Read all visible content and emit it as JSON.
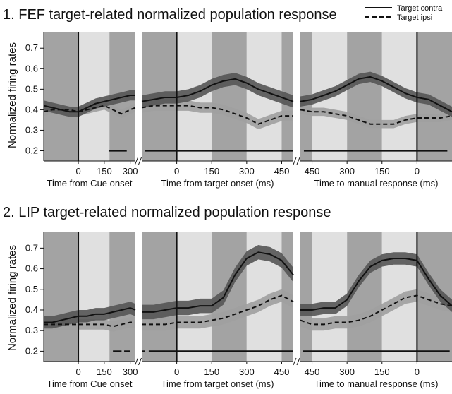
{
  "colors": {
    "shade_dark": "#a3a3a3",
    "shade_light": "#e0e0e0",
    "contra_line": "#111111",
    "contra_band": "#555555",
    "ipsi_line": "#111111",
    "ipsi_band": "#a0a0a0"
  },
  "legend": {
    "contra": "Target contra",
    "ipsi": "Target ipsi"
  },
  "chart_data": [
    {
      "type": "line",
      "title": "1. FEF target-related normalized population response",
      "ylabel": "Normalized firing rates",
      "ylim": [
        0.15,
        0.78
      ],
      "yticks": [
        0.2,
        0.3,
        0.4,
        0.5,
        0.6,
        0.7
      ],
      "ytick_labels": [
        "0.2",
        "0.3",
        "0.4",
        "0.5",
        "0.6",
        "0.7"
      ],
      "panels": [
        {
          "xlabel": "Time from Cue onset",
          "xlim": [
            -200,
            330
          ],
          "xticks": [
            0,
            150,
            300
          ],
          "xtick_labels": [
            "0",
            "150",
            "300"
          ],
          "vline": 0,
          "shading": [
            [
              -200,
              0,
              "dark"
            ],
            [
              0,
              180,
              "light"
            ],
            [
              180,
              330,
              "dark"
            ]
          ],
          "sig_bar": [
            [
              175,
              280
            ]
          ],
          "series": [
            {
              "name": "Target contra",
              "x": [
                -200,
                -150,
                -100,
                -50,
                0,
                50,
                100,
                150,
                200,
                250,
                300,
                330
              ],
              "y": [
                0.42,
                0.41,
                0.4,
                0.39,
                0.39,
                0.41,
                0.43,
                0.44,
                0.45,
                0.46,
                0.47,
                0.47
              ],
              "band": 0.025
            },
            {
              "name": "Target ipsi",
              "x": [
                -200,
                -150,
                -100,
                -50,
                0,
                50,
                100,
                150,
                200,
                250,
                300,
                330
              ],
              "y": [
                0.39,
                0.4,
                0.4,
                0.4,
                0.39,
                0.4,
                0.41,
                0.42,
                0.4,
                0.38,
                0.4,
                0.41
              ],
              "band": 0.02
            }
          ]
        },
        {
          "xlabel": "Time from target onset (ms)",
          "xlim": [
            -150,
            500
          ],
          "xticks": [
            0,
            150,
            300,
            450
          ],
          "xtick_labels": [
            "0",
            "150",
            "300",
            "450"
          ],
          "vline": 0,
          "shading": [
            [
              -150,
              0,
              "dark"
            ],
            [
              0,
              150,
              "light"
            ],
            [
              150,
              300,
              "dark"
            ],
            [
              300,
              450,
              "light"
            ],
            [
              450,
              500,
              "dark"
            ]
          ],
          "sig_bar": [
            [
              -135,
              500
            ]
          ],
          "series": [
            {
              "name": "Target contra",
              "x": [
                -150,
                -100,
                -50,
                0,
                50,
                100,
                150,
                200,
                250,
                300,
                350,
                400,
                450,
                500
              ],
              "y": [
                0.44,
                0.45,
                0.46,
                0.46,
                0.47,
                0.49,
                0.52,
                0.54,
                0.55,
                0.53,
                0.5,
                0.48,
                0.46,
                0.44
              ],
              "band": 0.03
            },
            {
              "name": "Target ipsi",
              "x": [
                -150,
                -100,
                -50,
                0,
                50,
                100,
                150,
                200,
                250,
                300,
                350,
                400,
                450,
                500
              ],
              "y": [
                0.41,
                0.42,
                0.42,
                0.42,
                0.42,
                0.41,
                0.41,
                0.4,
                0.38,
                0.36,
                0.33,
                0.35,
                0.37,
                0.37
              ],
              "band": 0.025
            }
          ]
        },
        {
          "xlabel": "Time to manual response (ms)",
          "xlim": [
            -500,
            150
          ],
          "xticks": [
            -450,
            -300,
            -150,
            0
          ],
          "xtick_labels": [
            "450",
            "300",
            "150",
            "0"
          ],
          "vline": 0,
          "shading": [
            [
              -500,
              -450,
              "dark"
            ],
            [
              -450,
              -300,
              "light"
            ],
            [
              -300,
              -150,
              "dark"
            ],
            [
              -150,
              0,
              "light"
            ],
            [
              0,
              150,
              "dark"
            ]
          ],
          "sig_bar": [
            [
              -485,
              130
            ]
          ],
          "series": [
            {
              "name": "Target contra",
              "x": [
                -500,
                -450,
                -400,
                -350,
                -300,
                -250,
                -200,
                -150,
                -100,
                -50,
                0,
                50,
                100,
                150
              ],
              "y": [
                0.44,
                0.45,
                0.47,
                0.49,
                0.52,
                0.55,
                0.56,
                0.54,
                0.51,
                0.48,
                0.46,
                0.45,
                0.42,
                0.39
              ],
              "band": 0.025
            },
            {
              "name": "Target ipsi",
              "x": [
                -500,
                -450,
                -400,
                -350,
                -300,
                -250,
                -200,
                -150,
                -100,
                -50,
                0,
                50,
                100,
                150
              ],
              "y": [
                0.4,
                0.39,
                0.39,
                0.38,
                0.37,
                0.35,
                0.33,
                0.33,
                0.33,
                0.35,
                0.36,
                0.36,
                0.36,
                0.37
              ],
              "band": 0.02
            }
          ]
        }
      ]
    },
    {
      "type": "line",
      "title": "2. LIP target-related normalized population response",
      "ylabel": "Normalized firing rates",
      "ylim": [
        0.15,
        0.78
      ],
      "yticks": [
        0.2,
        0.3,
        0.4,
        0.5,
        0.6,
        0.7
      ],
      "ytick_labels": [
        "0.2",
        "0.3",
        "0.4",
        "0.5",
        "0.6",
        "0.7"
      ],
      "panels": [
        {
          "xlabel": "Time from Cue onset",
          "xlim": [
            -200,
            330
          ],
          "xticks": [
            0,
            150,
            300
          ],
          "xtick_labels": [
            "0",
            "150",
            "300"
          ],
          "vline": 0,
          "shading": [
            [
              -200,
              0,
              "dark"
            ],
            [
              0,
              180,
              "light"
            ],
            [
              180,
              330,
              "dark"
            ]
          ],
          "sig_bar": [
            [
              200,
              250
            ],
            [
              265,
              300
            ]
          ],
          "series": [
            {
              "name": "Target contra",
              "x": [
                -200,
                -150,
                -100,
                -50,
                0,
                50,
                100,
                150,
                200,
                250,
                300,
                330
              ],
              "y": [
                0.34,
                0.34,
                0.35,
                0.36,
                0.37,
                0.37,
                0.38,
                0.38,
                0.39,
                0.4,
                0.41,
                0.4
              ],
              "band": 0.03
            },
            {
              "name": "Target ipsi",
              "x": [
                -200,
                -150,
                -100,
                -50,
                0,
                50,
                100,
                150,
                200,
                250,
                300,
                330
              ],
              "y": [
                0.33,
                0.33,
                0.33,
                0.33,
                0.33,
                0.33,
                0.33,
                0.33,
                0.32,
                0.33,
                0.34,
                0.34
              ],
              "band": 0.025
            }
          ]
        },
        {
          "xlabel": "Time from target onset (ms)",
          "xlim": [
            -150,
            500
          ],
          "xticks": [
            0,
            150,
            300,
            450
          ],
          "xtick_labels": [
            "0",
            "150",
            "300",
            "450"
          ],
          "vline": 0,
          "shading": [
            [
              -150,
              0,
              "dark"
            ],
            [
              0,
              150,
              "light"
            ],
            [
              150,
              300,
              "dark"
            ],
            [
              300,
              450,
              "light"
            ],
            [
              450,
              500,
              "dark"
            ]
          ],
          "sig_bar": [
            [
              -150,
              -135
            ],
            [
              -120,
              500
            ]
          ],
          "series": [
            {
              "name": "Target contra",
              "x": [
                -150,
                -100,
                -50,
                0,
                50,
                100,
                150,
                200,
                250,
                300,
                350,
                400,
                450,
                500
              ],
              "y": [
                0.39,
                0.39,
                0.4,
                0.41,
                0.41,
                0.42,
                0.42,
                0.46,
                0.57,
                0.65,
                0.68,
                0.67,
                0.64,
                0.57
              ],
              "band": 0.035
            },
            {
              "name": "Target ipsi",
              "x": [
                -150,
                -100,
                -50,
                0,
                50,
                100,
                150,
                200,
                250,
                300,
                350,
                400,
                450,
                500
              ],
              "y": [
                0.33,
                0.33,
                0.33,
                0.34,
                0.34,
                0.34,
                0.35,
                0.36,
                0.38,
                0.4,
                0.42,
                0.45,
                0.47,
                0.44
              ],
              "band": 0.03
            }
          ]
        },
        {
          "xlabel": "Time to manual response (ms)",
          "xlim": [
            -500,
            150
          ],
          "xticks": [
            -450,
            -300,
            -150,
            0
          ],
          "xtick_labels": [
            "450",
            "300",
            "150",
            "0"
          ],
          "vline": 0,
          "shading": [
            [
              -500,
              -450,
              "dark"
            ],
            [
              -450,
              -300,
              "light"
            ],
            [
              -300,
              -150,
              "dark"
            ],
            [
              -150,
              0,
              "light"
            ],
            [
              0,
              150,
              "dark"
            ]
          ],
          "sig_bar": [
            [
              -490,
              140
            ]
          ],
          "series": [
            {
              "name": "Target contra",
              "x": [
                -500,
                -450,
                -400,
                -350,
                -300,
                -250,
                -200,
                -150,
                -100,
                -50,
                0,
                50,
                100,
                150
              ],
              "y": [
                0.4,
                0.4,
                0.41,
                0.41,
                0.45,
                0.54,
                0.61,
                0.64,
                0.65,
                0.65,
                0.64,
                0.55,
                0.47,
                0.42
              ],
              "band": 0.03
            },
            {
              "name": "Target ipsi",
              "x": [
                -500,
                -450,
                -400,
                -350,
                -300,
                -250,
                -200,
                -150,
                -100,
                -50,
                0,
                50,
                100,
                150
              ],
              "y": [
                0.35,
                0.33,
                0.33,
                0.34,
                0.34,
                0.35,
                0.37,
                0.4,
                0.43,
                0.46,
                0.47,
                0.45,
                0.43,
                0.42
              ],
              "band": 0.03
            }
          ]
        }
      ]
    }
  ]
}
